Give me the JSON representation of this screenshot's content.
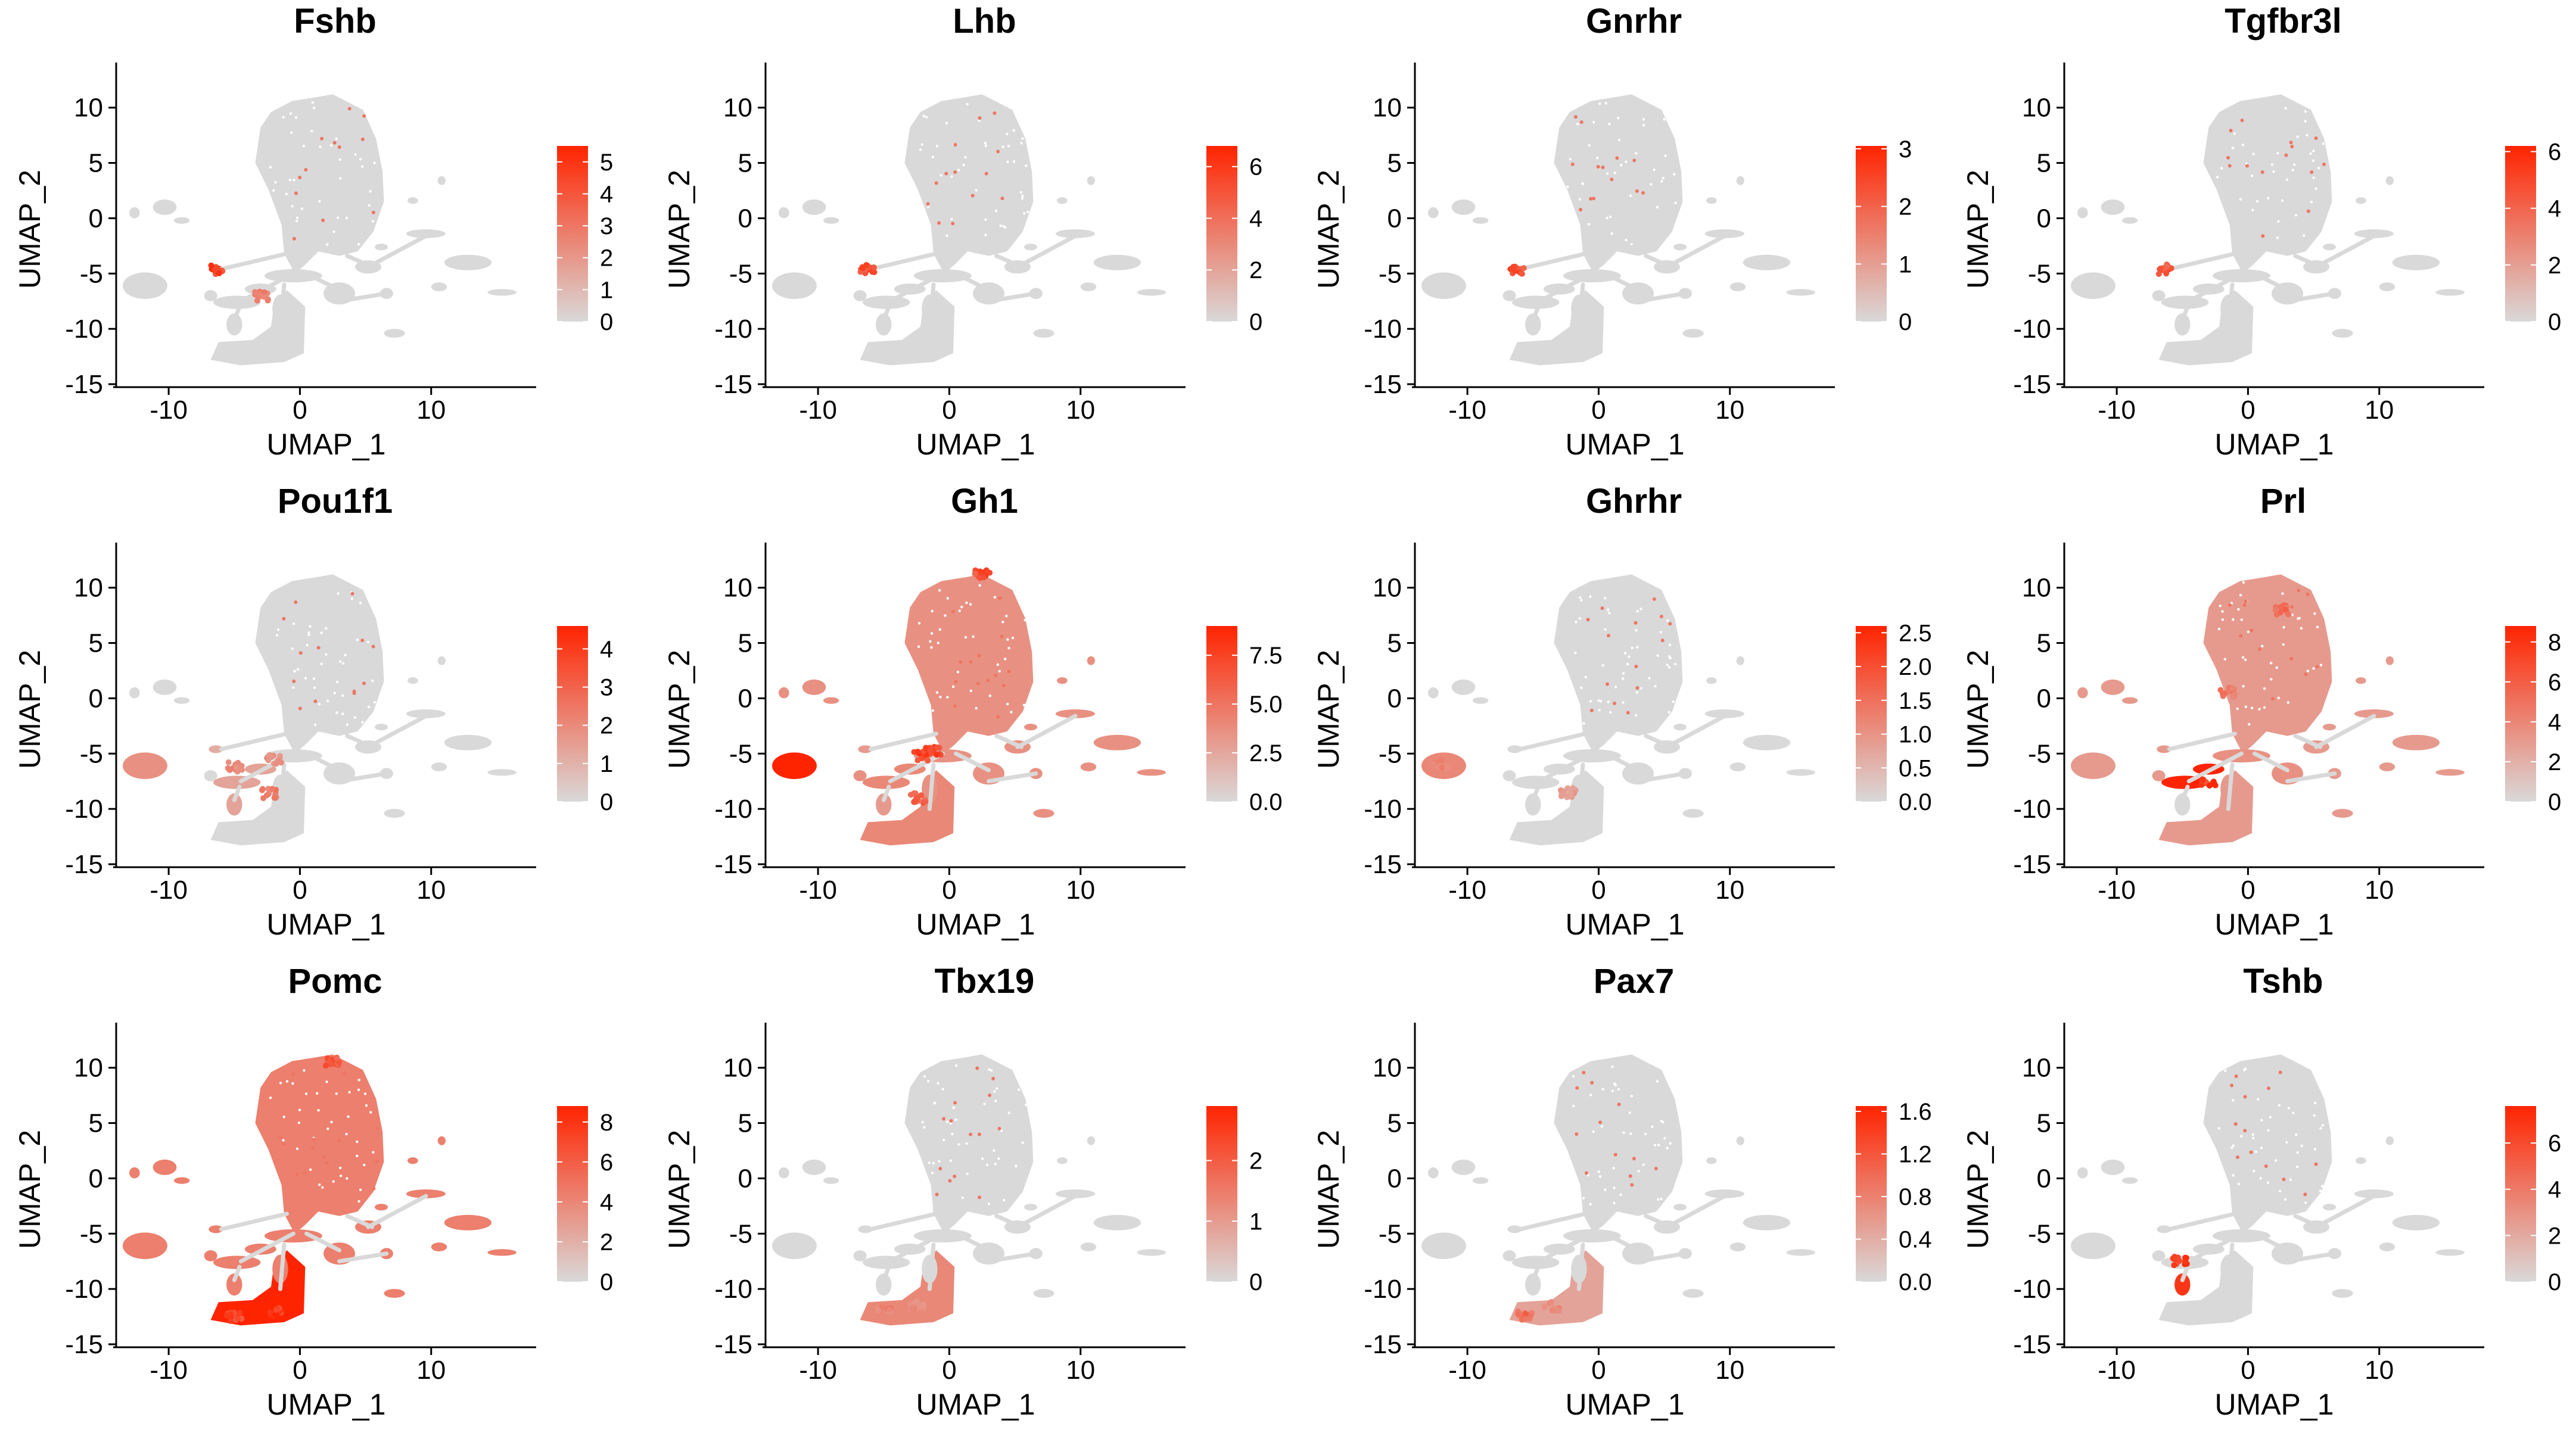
{
  "figure": {
    "low_color": "#d9d9d9",
    "high_color": "#ff2400",
    "background": "#ffffff"
  },
  "chart_data": [
    {
      "type": "scatter",
      "title": "Fshb",
      "xlabel": "UMAP_1",
      "ylabel": "UMAP_2",
      "xlim": [
        -14,
        18
      ],
      "ylim": [
        -15,
        13
      ],
      "xticks": [
        -10,
        0,
        10
      ],
      "yticks": [
        -15,
        -10,
        -5,
        0,
        5,
        10
      ],
      "color_scale": {
        "min": 0,
        "max": 5.5,
        "ticks": [
          "0",
          "1",
          "2",
          "3",
          "4",
          "5"
        ]
      },
      "expression": {
        "Gonadotrope": 0.95
      },
      "hotspots": [
        [
          -6.3,
          -4.6,
          0.95
        ],
        [
          -3.0,
          -7.0,
          0.6
        ]
      ]
    },
    {
      "type": "scatter",
      "title": "Lhb",
      "xlabel": "UMAP_1",
      "ylabel": "UMAP_2",
      "xlim": [
        -14,
        18
      ],
      "ylim": [
        -15,
        13
      ],
      "xticks": [
        -10,
        0,
        10
      ],
      "yticks": [
        -15,
        -10,
        -5,
        0,
        5,
        10
      ],
      "color_scale": {
        "min": 0,
        "max": 6.8,
        "ticks": [
          "0",
          "2",
          "4",
          "6"
        ]
      },
      "expression": {
        "Gonadotrope": 0.9
      },
      "hotspots": [
        [
          -6.3,
          -4.6,
          0.9
        ]
      ]
    },
    {
      "type": "scatter",
      "title": "Gnrhr",
      "xlabel": "UMAP_1",
      "ylabel": "UMAP_2",
      "xlim": [
        -14,
        18
      ],
      "ylim": [
        -15,
        13
      ],
      "xticks": [
        -10,
        0,
        10
      ],
      "yticks": [
        -15,
        -10,
        -5,
        0,
        5,
        10
      ],
      "color_scale": {
        "min": 0,
        "max": 3.05,
        "ticks": [
          "0",
          "1",
          "2",
          "3"
        ]
      },
      "expression": {
        "Gonadotrope": 0.9
      },
      "hotspots": [
        [
          -6.3,
          -4.6,
          0.9
        ]
      ]
    },
    {
      "type": "scatter",
      "title": "Tgfbr3l",
      "xlabel": "UMAP_1",
      "ylabel": "UMAP_2",
      "xlim": [
        -14,
        18
      ],
      "ylim": [
        -15,
        13
      ],
      "xticks": [
        -10,
        0,
        10
      ],
      "yticks": [
        -15,
        -10,
        -5,
        0,
        5,
        10
      ],
      "color_scale": {
        "min": 0,
        "max": 6.2,
        "ticks": [
          "0",
          "2",
          "4",
          "6"
        ]
      },
      "expression": {
        "Gonadotrope": 0.85
      },
      "hotspots": [
        [
          -6.3,
          -4.6,
          0.85
        ]
      ]
    },
    {
      "type": "scatter",
      "title": "Pou1f1",
      "xlabel": "UMAP_1",
      "ylabel": "UMAP_2",
      "xlim": [
        -14,
        18
      ],
      "ylim": [
        -15,
        13
      ],
      "xticks": [
        -10,
        0,
        10
      ],
      "yticks": [
        -15,
        -10,
        -5,
        0,
        5,
        10
      ],
      "color_scale": {
        "min": 0,
        "max": 4.6,
        "ticks": [
          "0",
          "1",
          "2",
          "3",
          "4"
        ]
      },
      "expression": {
        "Somatotrope": 0.4,
        "Lactotrope": 0.3,
        "Thyrotrope": 0.3,
        "Gonadotrope": 0.25
      },
      "hotspots": [
        [
          -5.0,
          -6.2,
          0.5
        ],
        [
          -2.0,
          -5.5,
          0.45
        ],
        [
          -2.4,
          -8.6,
          0.6
        ]
      ]
    },
    {
      "type": "scatter",
      "title": "Gh1",
      "xlabel": "UMAP_1",
      "ylabel": "UMAP_2",
      "xlim": [
        -14,
        18
      ],
      "ylim": [
        -15,
        13
      ],
      "xticks": [
        -10,
        0,
        10
      ],
      "yticks": [
        -15,
        -10,
        -5,
        0,
        5,
        10
      ],
      "color_scale": {
        "min": 0,
        "max": 9,
        "ticks": [
          "0.0",
          "2.5",
          "5.0",
          "7.5"
        ]
      },
      "expression": {
        "Stem/Other": 0.4,
        "Somatotrope": 1.0,
        "Lactotrope": 0.45,
        "Melanotrope": 0.4,
        "Corticotrope": 0.45,
        "Side clusters": 0.4,
        "Gonadotrope": 0.35,
        "Thyrotrope": 0.35
      },
      "hotspots": [
        [
          -2.2,
          -5.2,
          1.0
        ],
        [
          -1.2,
          -4.8,
          0.95
        ],
        [
          -2.4,
          -9.0,
          0.75
        ],
        [
          2.5,
          11.3,
          0.9
        ]
      ]
    },
    {
      "type": "scatter",
      "title": "Ghrhr",
      "xlabel": "UMAP_1",
      "ylabel": "UMAP_2",
      "xlim": [
        -14,
        18
      ],
      "ylim": [
        -15,
        13
      ],
      "xticks": [
        -10,
        0,
        10
      ],
      "yticks": [
        -15,
        -10,
        -5,
        0,
        5,
        10
      ],
      "color_scale": {
        "min": 0,
        "max": 2.6,
        "ticks": [
          "0.0",
          "0.5",
          "1.0",
          "1.5",
          "2.0",
          "2.5"
        ]
      },
      "expression": {
        "Somatotrope": 0.45
      },
      "hotspots": [
        [
          -12.0,
          -6.0,
          0.55
        ],
        [
          -2.3,
          -8.5,
          0.4
        ]
      ]
    },
    {
      "type": "scatter",
      "title": "Prl",
      "xlabel": "UMAP_1",
      "ylabel": "UMAP_2",
      "xlim": [
        -14,
        18
      ],
      "ylim": [
        -15,
        13
      ],
      "xticks": [
        -10,
        0,
        10
      ],
      "yticks": [
        -15,
        -10,
        -5,
        0,
        5,
        10
      ],
      "color_scale": {
        "min": 0,
        "max": 8.8,
        "ticks": [
          "0",
          "2",
          "4",
          "6",
          "8"
        ]
      },
      "expression": {
        "Stem/Other": 0.35,
        "Lactotrope": 1.0,
        "Somatotrope": 0.35,
        "Melanotrope": 0.4,
        "Corticotrope": 0.35,
        "Side clusters": 0.35,
        "Gonadotrope": 0.35
      },
      "hotspots": [
        [
          -3.0,
          -7.5,
          1.0
        ],
        [
          -1.5,
          0.5,
          0.6
        ],
        [
          2.5,
          8.0,
          0.7
        ]
      ]
    },
    {
      "type": "scatter",
      "title": "Pomc",
      "xlabel": "UMAP_1",
      "ylabel": "UMAP_2",
      "xlim": [
        -14,
        18
      ],
      "ylim": [
        -15,
        13
      ],
      "xticks": [
        -10,
        0,
        10
      ],
      "yticks": [
        -15,
        -10,
        -5,
        0,
        5,
        10
      ],
      "color_scale": {
        "min": 0,
        "max": 8.8,
        "ticks": [
          "0",
          "2",
          "4",
          "6",
          "8"
        ]
      },
      "expression": {
        "Stem/Other": 0.5,
        "Corticotrope": 1.0,
        "Melanotrope": 0.5,
        "Somatotrope": 0.5,
        "Lactotrope": 0.5,
        "Side clusters": 0.5,
        "Gonadotrope": 0.5,
        "Thyrotrope": 0.5
      },
      "hotspots": [
        [
          -2.0,
          -12.0,
          1.0
        ],
        [
          -5.0,
          -12.5,
          0.95
        ],
        [
          2.5,
          10.5,
          0.8
        ]
      ]
    },
    {
      "type": "scatter",
      "title": "Tbx19",
      "xlabel": "UMAP_1",
      "ylabel": "UMAP_2",
      "xlim": [
        -14,
        18
      ],
      "ylim": [
        -15,
        13
      ],
      "xticks": [
        -10,
        0,
        10
      ],
      "yticks": [
        -15,
        -10,
        -5,
        0,
        5,
        10
      ],
      "color_scale": {
        "min": 0,
        "max": 2.9,
        "ticks": [
          "0",
          "1",
          "2"
        ]
      },
      "expression": {
        "Corticotrope": 0.45
      },
      "hotspots": [
        [
          -5.0,
          -12.0,
          0.55
        ],
        [
          -2.5,
          -11.5,
          0.5
        ]
      ]
    },
    {
      "type": "scatter",
      "title": "Pax7",
      "xlabel": "UMAP_1",
      "ylabel": "UMAP_2",
      "xlim": [
        -14,
        18
      ],
      "ylim": [
        -15,
        13
      ],
      "xticks": [
        -10,
        0,
        10
      ],
      "yticks": [
        -15,
        -10,
        -5,
        0,
        5,
        10
      ],
      "color_scale": {
        "min": 0,
        "max": 1.65,
        "ticks": [
          "0.0",
          "0.4",
          "0.8",
          "1.2",
          "1.6"
        ]
      },
      "expression": {
        "Corticotrope": 0.3
      },
      "hotspots": [
        [
          -5.6,
          -12.4,
          0.7
        ],
        [
          -3.6,
          -11.6,
          0.5
        ]
      ]
    },
    {
      "type": "scatter",
      "title": "Tshb",
      "xlabel": "UMAP_1",
      "ylabel": "UMAP_2",
      "xlim": [
        -14,
        18
      ],
      "ylim": [
        -15,
        13
      ],
      "xticks": [
        -10,
        0,
        10
      ],
      "yticks": [
        -15,
        -10,
        -5,
        0,
        5,
        10
      ],
      "color_scale": {
        "min": 0,
        "max": 7.6,
        "ticks": [
          "0",
          "2",
          "4",
          "6"
        ]
      },
      "expression": {
        "Thyrotrope": 0.9
      },
      "hotspots": [
        [
          -5.2,
          -7.5,
          1.0
        ]
      ]
    }
  ]
}
